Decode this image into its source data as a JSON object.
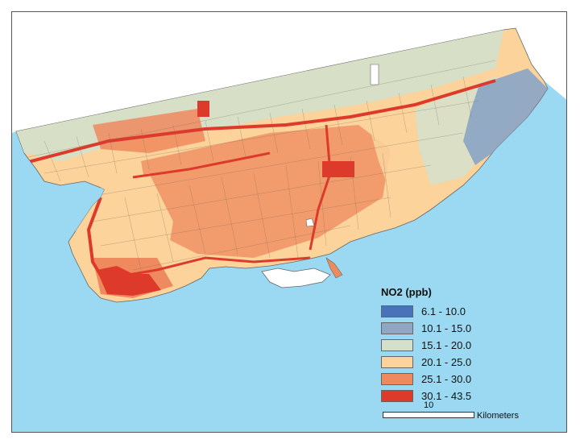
{
  "colors": {
    "water": "#9ad9f1",
    "land_outline": "#666666",
    "class_1": "#4a72b8",
    "class_2": "#8fa6c4",
    "class_3": "#d4e0cc",
    "class_4": "#fbd39b",
    "class_5": "#ef8a5e",
    "class_6": "#dd3a2c"
  },
  "legend": {
    "title": "NO2 (ppb)",
    "items": [
      {
        "label": "6.1 - 10.0",
        "color": "#4a72b8"
      },
      {
        "label": "10.1 - 15.0",
        "color": "#8fa6c4"
      },
      {
        "label": "15.1 - 20.0",
        "color": "#d4e0cc"
      },
      {
        "label": "20.1 - 25.0",
        "color": "#fbd39b"
      },
      {
        "label": "25.1 - 30.0",
        "color": "#ef8a5e"
      },
      {
        "label": "30.1 - 43.5",
        "color": "#dd3a2c"
      }
    ]
  },
  "scale": {
    "value": "10",
    "unit": "Kilometers"
  }
}
